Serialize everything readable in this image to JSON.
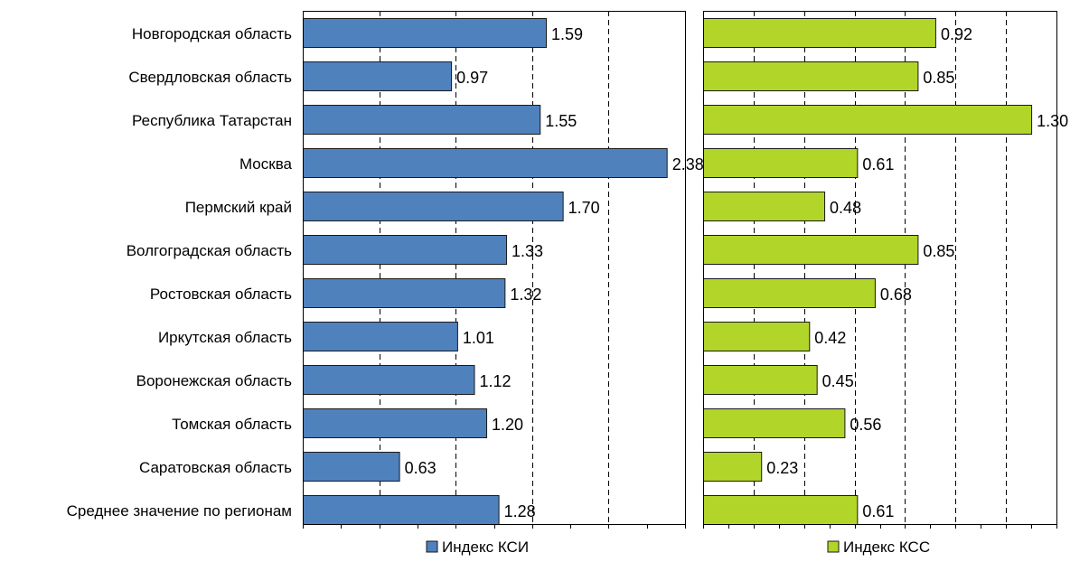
{
  "chart_data": [
    {
      "type": "bar",
      "orientation": "horizontal",
      "categories": [
        "Новгородская область",
        "Свердловская область",
        "Республика Татарстан",
        "Москва",
        "Пермский край",
        "Волгоградская область",
        "Ростовская область",
        "Иркутская область",
        "Воронежская область",
        "Томская область",
        "Саратовская область",
        "Среднее значение по регионам"
      ],
      "series": [
        {
          "name": "Индекс КСИ",
          "values": [
            1.59,
            0.97,
            1.55,
            2.38,
            1.7,
            1.33,
            1.32,
            1.01,
            1.12,
            1.2,
            0.63,
            1.28
          ],
          "labels": [
            "1.59",
            "0.97",
            "1.55",
            "2.38",
            "1.70",
            "1.33",
            "1.32",
            "1.01",
            "1.12",
            "1.20",
            "0.63",
            "1.28"
          ],
          "color": "#4F81BD"
        }
      ],
      "xlim": [
        0,
        2.5
      ],
      "grid": true,
      "legend": "bottom"
    },
    {
      "type": "bar",
      "orientation": "horizontal",
      "categories": [
        "Новгородская область",
        "Свердловская область",
        "Республика Татарстан",
        "Москва",
        "Пермский край",
        "Волгоградская область",
        "Ростовская область",
        "Иркутская область",
        "Воронежская область",
        "Томская область",
        "Саратовская область",
        "Среднее значение по регионам"
      ],
      "series": [
        {
          "name": "Индекс КСС",
          "values": [
            0.92,
            0.85,
            1.3,
            0.61,
            0.48,
            0.85,
            0.68,
            0.42,
            0.45,
            0.56,
            0.23,
            0.61
          ],
          "labels": [
            "0.92",
            "0.85",
            "1.30",
            "0.61",
            "0.48",
            "0.85",
            "0.68",
            "0.42",
            "0.45",
            "0.56",
            "0.23",
            "0.61"
          ],
          "color": "#B2D52A"
        }
      ],
      "xlim": [
        0,
        1.4
      ],
      "grid": true,
      "legend": "bottom"
    }
  ]
}
